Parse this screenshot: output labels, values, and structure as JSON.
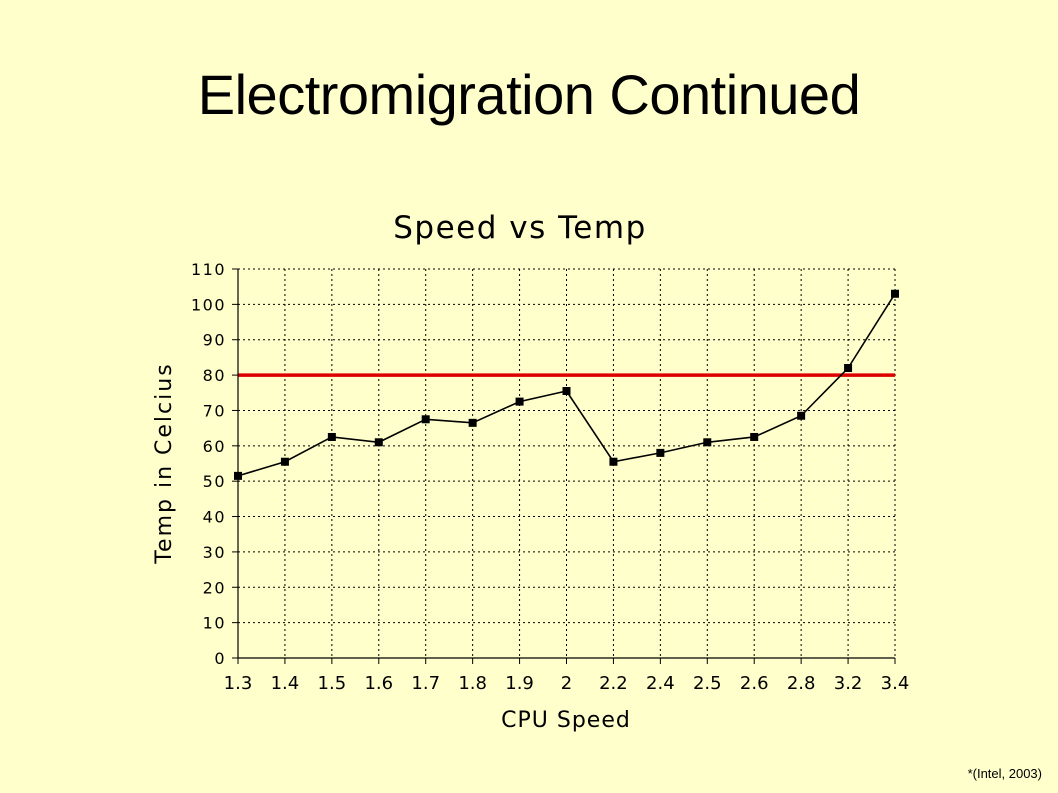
{
  "slide": {
    "title": "Electromigration Continued",
    "citation": "*(Intel, 2003)"
  },
  "colors": {
    "background": "#FFFFCC",
    "series_line": "#000000",
    "threshold_line": "#DD0000",
    "grid": "#000000"
  },
  "chart_data": {
    "type": "line",
    "title": "Speed vs Temp",
    "xlabel": "CPU Speed",
    "ylabel": "Temp in Celcius",
    "categories": [
      "1.3",
      "1.4",
      "1.5",
      "1.6",
      "1.7",
      "1.8",
      "1.9",
      "2",
      "2.2",
      "2.4",
      "2.5",
      "2.6",
      "2.8",
      "3.2",
      "3.4"
    ],
    "series": [
      {
        "values": [
          51.5,
          55.5,
          62.5,
          61,
          67.5,
          66.5,
          72.5,
          75.5,
          55.5,
          58,
          61,
          62.5,
          68.5,
          82,
          103
        ],
        "marker": "square"
      }
    ],
    "threshold": 80,
    "ylim": [
      0,
      110
    ],
    "yticks": [
      0,
      10,
      20,
      30,
      40,
      50,
      60,
      70,
      80,
      90,
      100,
      110
    ],
    "grid": true,
    "grid_style": "dotted",
    "legend": "none"
  }
}
